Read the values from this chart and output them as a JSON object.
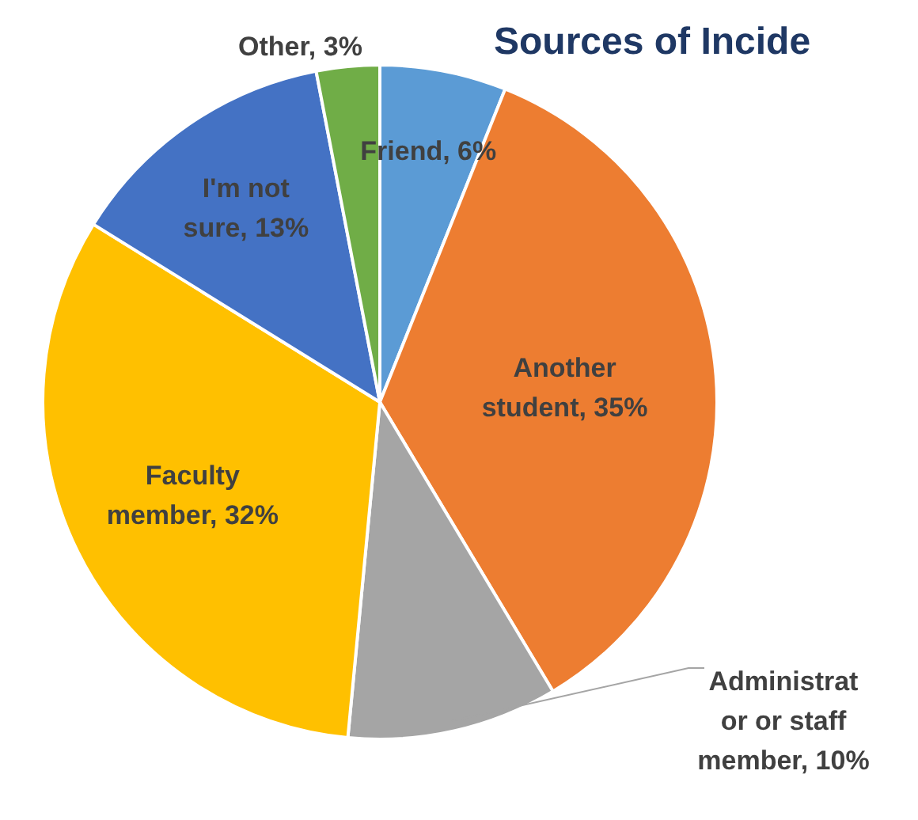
{
  "chart_data": {
    "type": "pie",
    "title": "Sources of Incide",
    "categories": [
      "Friend",
      "Another student",
      "Administrator or staff member",
      "Faculty member",
      "I'm not sure",
      "Other"
    ],
    "values": [
      6,
      35,
      10,
      32,
      13,
      3
    ],
    "value_labels": [
      "6%",
      "35%",
      "10%",
      "32%",
      "13%",
      "3%"
    ],
    "colors": [
      "#5b9bd5",
      "#ed7d31",
      "#a5a5a5",
      "#ffc000",
      "#4472c4",
      "#70ad47"
    ]
  }
}
